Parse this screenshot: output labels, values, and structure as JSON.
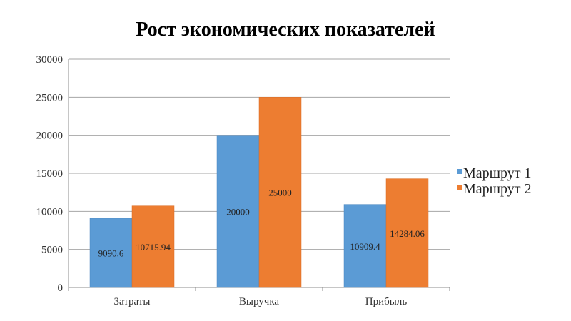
{
  "chart_data": {
    "type": "bar",
    "title": "Рост экономических показателей",
    "xlabel": "",
    "ylabel": "",
    "categories": [
      "Затраты",
      "Выручка",
      "Прибыль"
    ],
    "series": [
      {
        "name": "Маршрут 1",
        "values": [
          9090.6,
          20000,
          10909.4
        ],
        "labels": [
          "9090.6",
          "20000",
          "10909.4"
        ],
        "color": "#5b9bd5"
      },
      {
        "name": "Маршрут 2",
        "values": [
          10715.94,
          25000,
          14284.06
        ],
        "labels": [
          "10715.94",
          "25000",
          "14284.06"
        ],
        "color": "#ed7d31"
      }
    ],
    "ylim": [
      0,
      30000
    ],
    "yticks": [
      "0",
      "5000",
      "10000",
      "15000",
      "20000",
      "25000",
      "30000"
    ],
    "grid": true,
    "legend_position": "right"
  }
}
